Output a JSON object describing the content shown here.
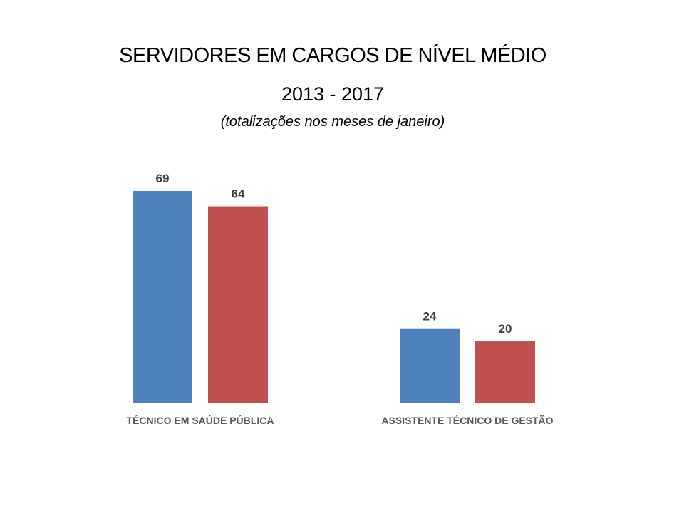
{
  "header": {
    "title": "SERVIDORES EM CARGOS DE NÍVEL MÉDIO",
    "subtitle": "2013 - 2017",
    "note": "(totalizações nos meses de janeiro)"
  },
  "chart_data": {
    "type": "bar",
    "categories": [
      "TÉCNICO EM SAÚDE PÚBLICA",
      "ASSISTENTE TÉCNICO DE GESTÃO"
    ],
    "series": [
      {
        "values": [
          69,
          24
        ],
        "color": "#4f81bd"
      },
      {
        "values": [
          64,
          20
        ],
        "color": "#c0504d"
      }
    ],
    "title": "SERVIDORES EM CARGOS DE NÍVEL MÉDIO",
    "subtitle": "2013 - 2017",
    "xlabel": "",
    "ylabel": "",
    "ylim": [
      0,
      69
    ],
    "grid": false,
    "legend": "none",
    "data_labels": true
  }
}
